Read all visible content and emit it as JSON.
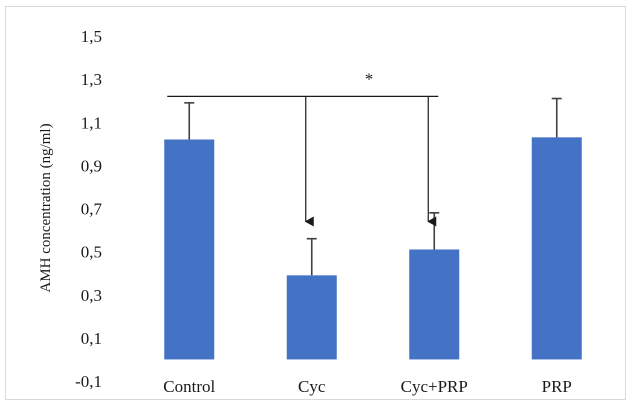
{
  "chart_data": {
    "type": "bar",
    "categories": [
      "Control",
      "Cyc",
      "Cyc+PRP",
      "PRP"
    ],
    "values": [
      1.02,
      0.39,
      0.51,
      1.03
    ],
    "errors": [
      0.17,
      0.17,
      0.17,
      0.18
    ],
    "ylabel": "AMH concentration (ng/ml)",
    "xlabel": "",
    "ylim": [
      -0.1,
      1.5
    ],
    "yticks": [
      -0.1,
      0.1,
      0.3,
      0.5,
      0.7,
      0.9,
      1.1,
      1.3,
      1.5
    ],
    "ytick_labels": [
      "-0,1",
      "0,1",
      "0,3",
      "0,5",
      "0,7",
      "0,9",
      "1,1",
      "1,3",
      "1,5"
    ],
    "bar_color": "#4472c4",
    "error_color": "#404040",
    "grid": false,
    "legend": "none",
    "annotation": {
      "text": "*",
      "bracket_y": 1.22,
      "from_category": "Control",
      "arrow_targets": [
        "Cyc",
        "Cyc+PRP"
      ],
      "arrow_tip_y": 0.64
    }
  }
}
